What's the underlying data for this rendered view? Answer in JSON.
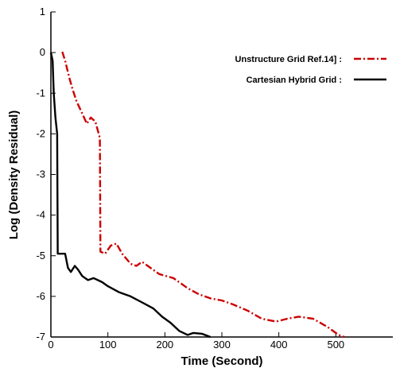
{
  "chart_data": {
    "type": "line",
    "title": "",
    "xlabel": "Time (Second)",
    "ylabel": "Log (Density Residual)",
    "xlim": [
      0,
      600
    ],
    "ylim": [
      -7,
      1
    ],
    "x_ticks": [
      0,
      100,
      200,
      300,
      400,
      500
    ],
    "y_ticks": [
      1,
      0,
      -1,
      -2,
      -3,
      -4,
      -5,
      -6,
      -7
    ],
    "grid": false,
    "legend_position": "top-right",
    "series": [
      {
        "name": "Unstructure Grid Ref.14] :",
        "color": "#cc0000",
        "style": "dash-dot",
        "points": [
          [
            20,
            0.02
          ],
          [
            25,
            -0.2
          ],
          [
            32,
            -0.6
          ],
          [
            38,
            -0.9
          ],
          [
            45,
            -1.2
          ],
          [
            55,
            -1.5
          ],
          [
            63,
            -1.75
          ],
          [
            70,
            -1.6
          ],
          [
            78,
            -1.7
          ],
          [
            86,
            -2.1
          ],
          [
            87,
            -4.9
          ],
          [
            95,
            -4.95
          ],
          [
            105,
            -4.75
          ],
          [
            115,
            -4.7
          ],
          [
            125,
            -4.95
          ],
          [
            140,
            -5.2
          ],
          [
            150,
            -5.25
          ],
          [
            160,
            -5.15
          ],
          [
            175,
            -5.3
          ],
          [
            190,
            -5.45
          ],
          [
            215,
            -5.55
          ],
          [
            240,
            -5.8
          ],
          [
            260,
            -5.95
          ],
          [
            280,
            -6.05
          ],
          [
            300,
            -6.1
          ],
          [
            320,
            -6.2
          ],
          [
            345,
            -6.35
          ],
          [
            370,
            -6.55
          ],
          [
            395,
            -6.62
          ],
          [
            415,
            -6.55
          ],
          [
            435,
            -6.5
          ],
          [
            460,
            -6.55
          ],
          [
            485,
            -6.75
          ],
          [
            505,
            -6.95
          ],
          [
            515,
            -7.0
          ]
        ]
      },
      {
        "name": "Cartesian Hybrid Grid :",
        "color": "#000000",
        "style": "solid",
        "points": [
          [
            0,
            0.0
          ],
          [
            3,
            -0.2
          ],
          [
            5,
            -1.0
          ],
          [
            8,
            -1.6
          ],
          [
            11,
            -2.0
          ],
          [
            12,
            -4.95
          ],
          [
            25,
            -4.95
          ],
          [
            30,
            -5.3
          ],
          [
            35,
            -5.4
          ],
          [
            42,
            -5.25
          ],
          [
            48,
            -5.35
          ],
          [
            55,
            -5.5
          ],
          [
            65,
            -5.6
          ],
          [
            75,
            -5.55
          ],
          [
            90,
            -5.65
          ],
          [
            100,
            -5.75
          ],
          [
            120,
            -5.9
          ],
          [
            140,
            -6.0
          ],
          [
            160,
            -6.15
          ],
          [
            180,
            -6.3
          ],
          [
            195,
            -6.5
          ],
          [
            210,
            -6.65
          ],
          [
            225,
            -6.85
          ],
          [
            240,
            -6.95
          ],
          [
            250,
            -6.9
          ],
          [
            265,
            -6.92
          ],
          [
            280,
            -7.0
          ]
        ]
      }
    ]
  }
}
